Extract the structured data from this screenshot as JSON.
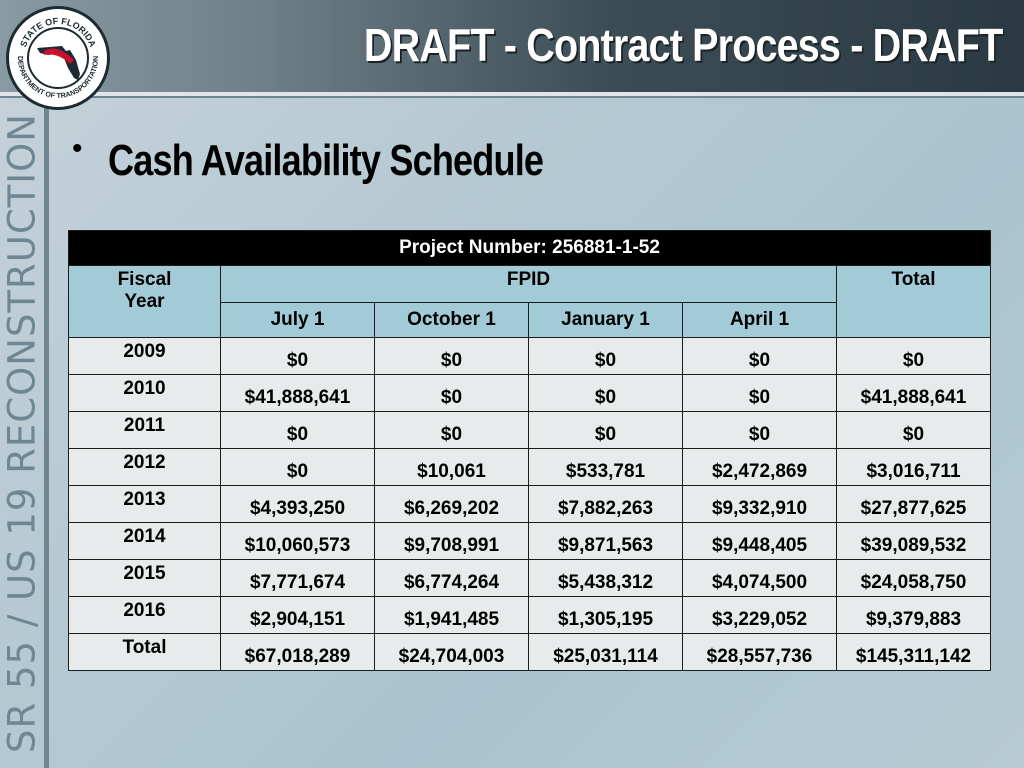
{
  "header": {
    "title": "DRAFT - Contract Process - DRAFT",
    "seal_text_top": "STATE OF FLORIDA",
    "seal_text_bottom": "DEPARTMENT OF TRANSPORTATION"
  },
  "sidebar": {
    "text": "SR 55 / US 19 RECONSTRUCTION"
  },
  "content": {
    "bullet": "•",
    "subtitle": "Cash Availability Schedule"
  },
  "table": {
    "project_label": "Project Number: 256881-1-52",
    "fiscal_year_label_1": "Fiscal",
    "fiscal_year_label_2": "Year",
    "fpid_label": "FPID",
    "total_label": "Total",
    "quarters": [
      "July 1",
      "October 1",
      "January 1",
      "April 1"
    ],
    "rows": [
      {
        "year": "2009",
        "values": [
          "$0",
          "$0",
          "$0",
          "$0",
          "$0"
        ]
      },
      {
        "year": "2010",
        "values": [
          "$41,888,641",
          "$0",
          "$0",
          "$0",
          "$41,888,641"
        ]
      },
      {
        "year": "2011",
        "values": [
          "$0",
          "$0",
          "$0",
          "$0",
          "$0"
        ]
      },
      {
        "year": "2012",
        "values": [
          "$0",
          "$10,061",
          "$533,781",
          "$2,472,869",
          "$3,016,711"
        ]
      },
      {
        "year": "2013",
        "values": [
          "$4,393,250",
          "$6,269,202",
          "$7,882,263",
          "$9,332,910",
          "$27,877,625"
        ]
      },
      {
        "year": "2014",
        "values": [
          "$10,060,573",
          "$9,708,991",
          "$9,871,563",
          "$9,448,405",
          "$39,089,532"
        ]
      },
      {
        "year": "2015",
        "values": [
          "$7,771,674",
          "$6,774,264",
          "$5,438,312",
          "$4,074,500",
          "$24,058,750"
        ]
      },
      {
        "year": "2016",
        "values": [
          "$2,904,151",
          "$1,941,485",
          "$1,305,195",
          "$3,229,052",
          "$9,379,883"
        ]
      },
      {
        "year": "Total",
        "values": [
          "$67,018,289",
          "$24,704,003",
          "$25,031,114",
          "$28,557,736",
          "$145,311,142"
        ]
      }
    ]
  },
  "colors": {
    "table_header_bg": "#a2cbd7",
    "table_body_bg": "#e7ebec",
    "project_row_bg": "#000000"
  }
}
